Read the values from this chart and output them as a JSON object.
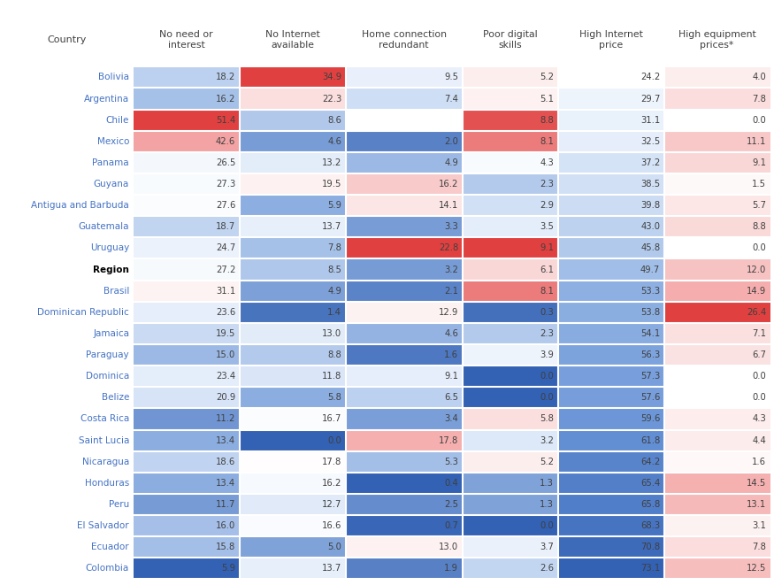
{
  "countries": [
    "Bolivia",
    "Argentina",
    "Chile",
    "Mexico",
    "Panama",
    "Guyana",
    "Antigua and Barbuda",
    "Guatemala",
    "Uruguay",
    "Region",
    "Brasil",
    "Dominican Republic",
    "Jamaica",
    "Paraguay",
    "Dominica",
    "Belize",
    "Costa Rica",
    "Saint Lucia",
    "Nicaragua",
    "Honduras",
    "Peru",
    "El Salvador",
    "Ecuador",
    "Colombia"
  ],
  "bold_rows": [
    "Region"
  ],
  "columns": [
    "No need or\ninterest",
    "No Internet\navailable",
    "Home connection\nredundant",
    "Poor digital\nskills",
    "High Internet\nprice",
    "High equipment\nprices*"
  ],
  "data": [
    [
      18.2,
      34.9,
      9.5,
      5.2,
      24.2,
      4.0
    ],
    [
      16.2,
      22.3,
      7.4,
      5.1,
      29.7,
      7.8
    ],
    [
      51.4,
      8.6,
      null,
      8.8,
      31.1,
      0.0
    ],
    [
      42.6,
      4.6,
      2.0,
      8.1,
      32.5,
      11.1
    ],
    [
      26.5,
      13.2,
      4.9,
      4.3,
      37.2,
      9.1
    ],
    [
      27.3,
      19.5,
      16.2,
      2.3,
      38.5,
      1.5
    ],
    [
      27.6,
      5.9,
      14.1,
      2.9,
      39.8,
      5.7
    ],
    [
      18.7,
      13.7,
      3.3,
      3.5,
      43.0,
      8.8
    ],
    [
      24.7,
      7.8,
      22.8,
      9.1,
      45.8,
      0.0
    ],
    [
      27.2,
      8.5,
      3.2,
      6.1,
      49.7,
      12.0
    ],
    [
      31.1,
      4.9,
      2.1,
      8.1,
      53.3,
      14.9
    ],
    [
      23.6,
      1.4,
      12.9,
      0.3,
      53.8,
      26.4
    ],
    [
      19.5,
      13.0,
      4.6,
      2.3,
      54.1,
      7.1
    ],
    [
      15.0,
      8.8,
      1.6,
      3.9,
      56.3,
      6.7
    ],
    [
      23.4,
      11.8,
      9.1,
      0.0,
      57.3,
      0.0
    ],
    [
      20.9,
      5.8,
      6.5,
      0.0,
      57.6,
      0.0
    ],
    [
      11.2,
      16.7,
      3.4,
      5.8,
      59.6,
      4.3
    ],
    [
      13.4,
      0.0,
      17.8,
      3.2,
      61.8,
      4.4
    ],
    [
      18.6,
      17.8,
      5.3,
      5.2,
      64.2,
      1.6
    ],
    [
      13.4,
      16.2,
      0.4,
      1.3,
      65.4,
      14.5
    ],
    [
      11.7,
      12.7,
      2.5,
      1.3,
      65.8,
      13.1
    ],
    [
      16.0,
      16.6,
      0.7,
      0.0,
      68.3,
      3.1
    ],
    [
      15.8,
      5.0,
      13.0,
      3.7,
      70.8,
      7.8
    ],
    [
      5.9,
      13.7,
      1.9,
      2.6,
      73.1,
      12.5
    ]
  ],
  "col_colormap": [
    "diverge_rb",
    "diverge_rb",
    "diverge_rb",
    "diverge_rb",
    "white_blue",
    "white_red"
  ],
  "background_color": "#ffffff",
  "country_label_color": "#4472C4",
  "country_bold_color": "#000000",
  "col_header_color": "#404040",
  "value_text_color": "#404040",
  "figure_width": 8.75,
  "figure_height": 6.61
}
